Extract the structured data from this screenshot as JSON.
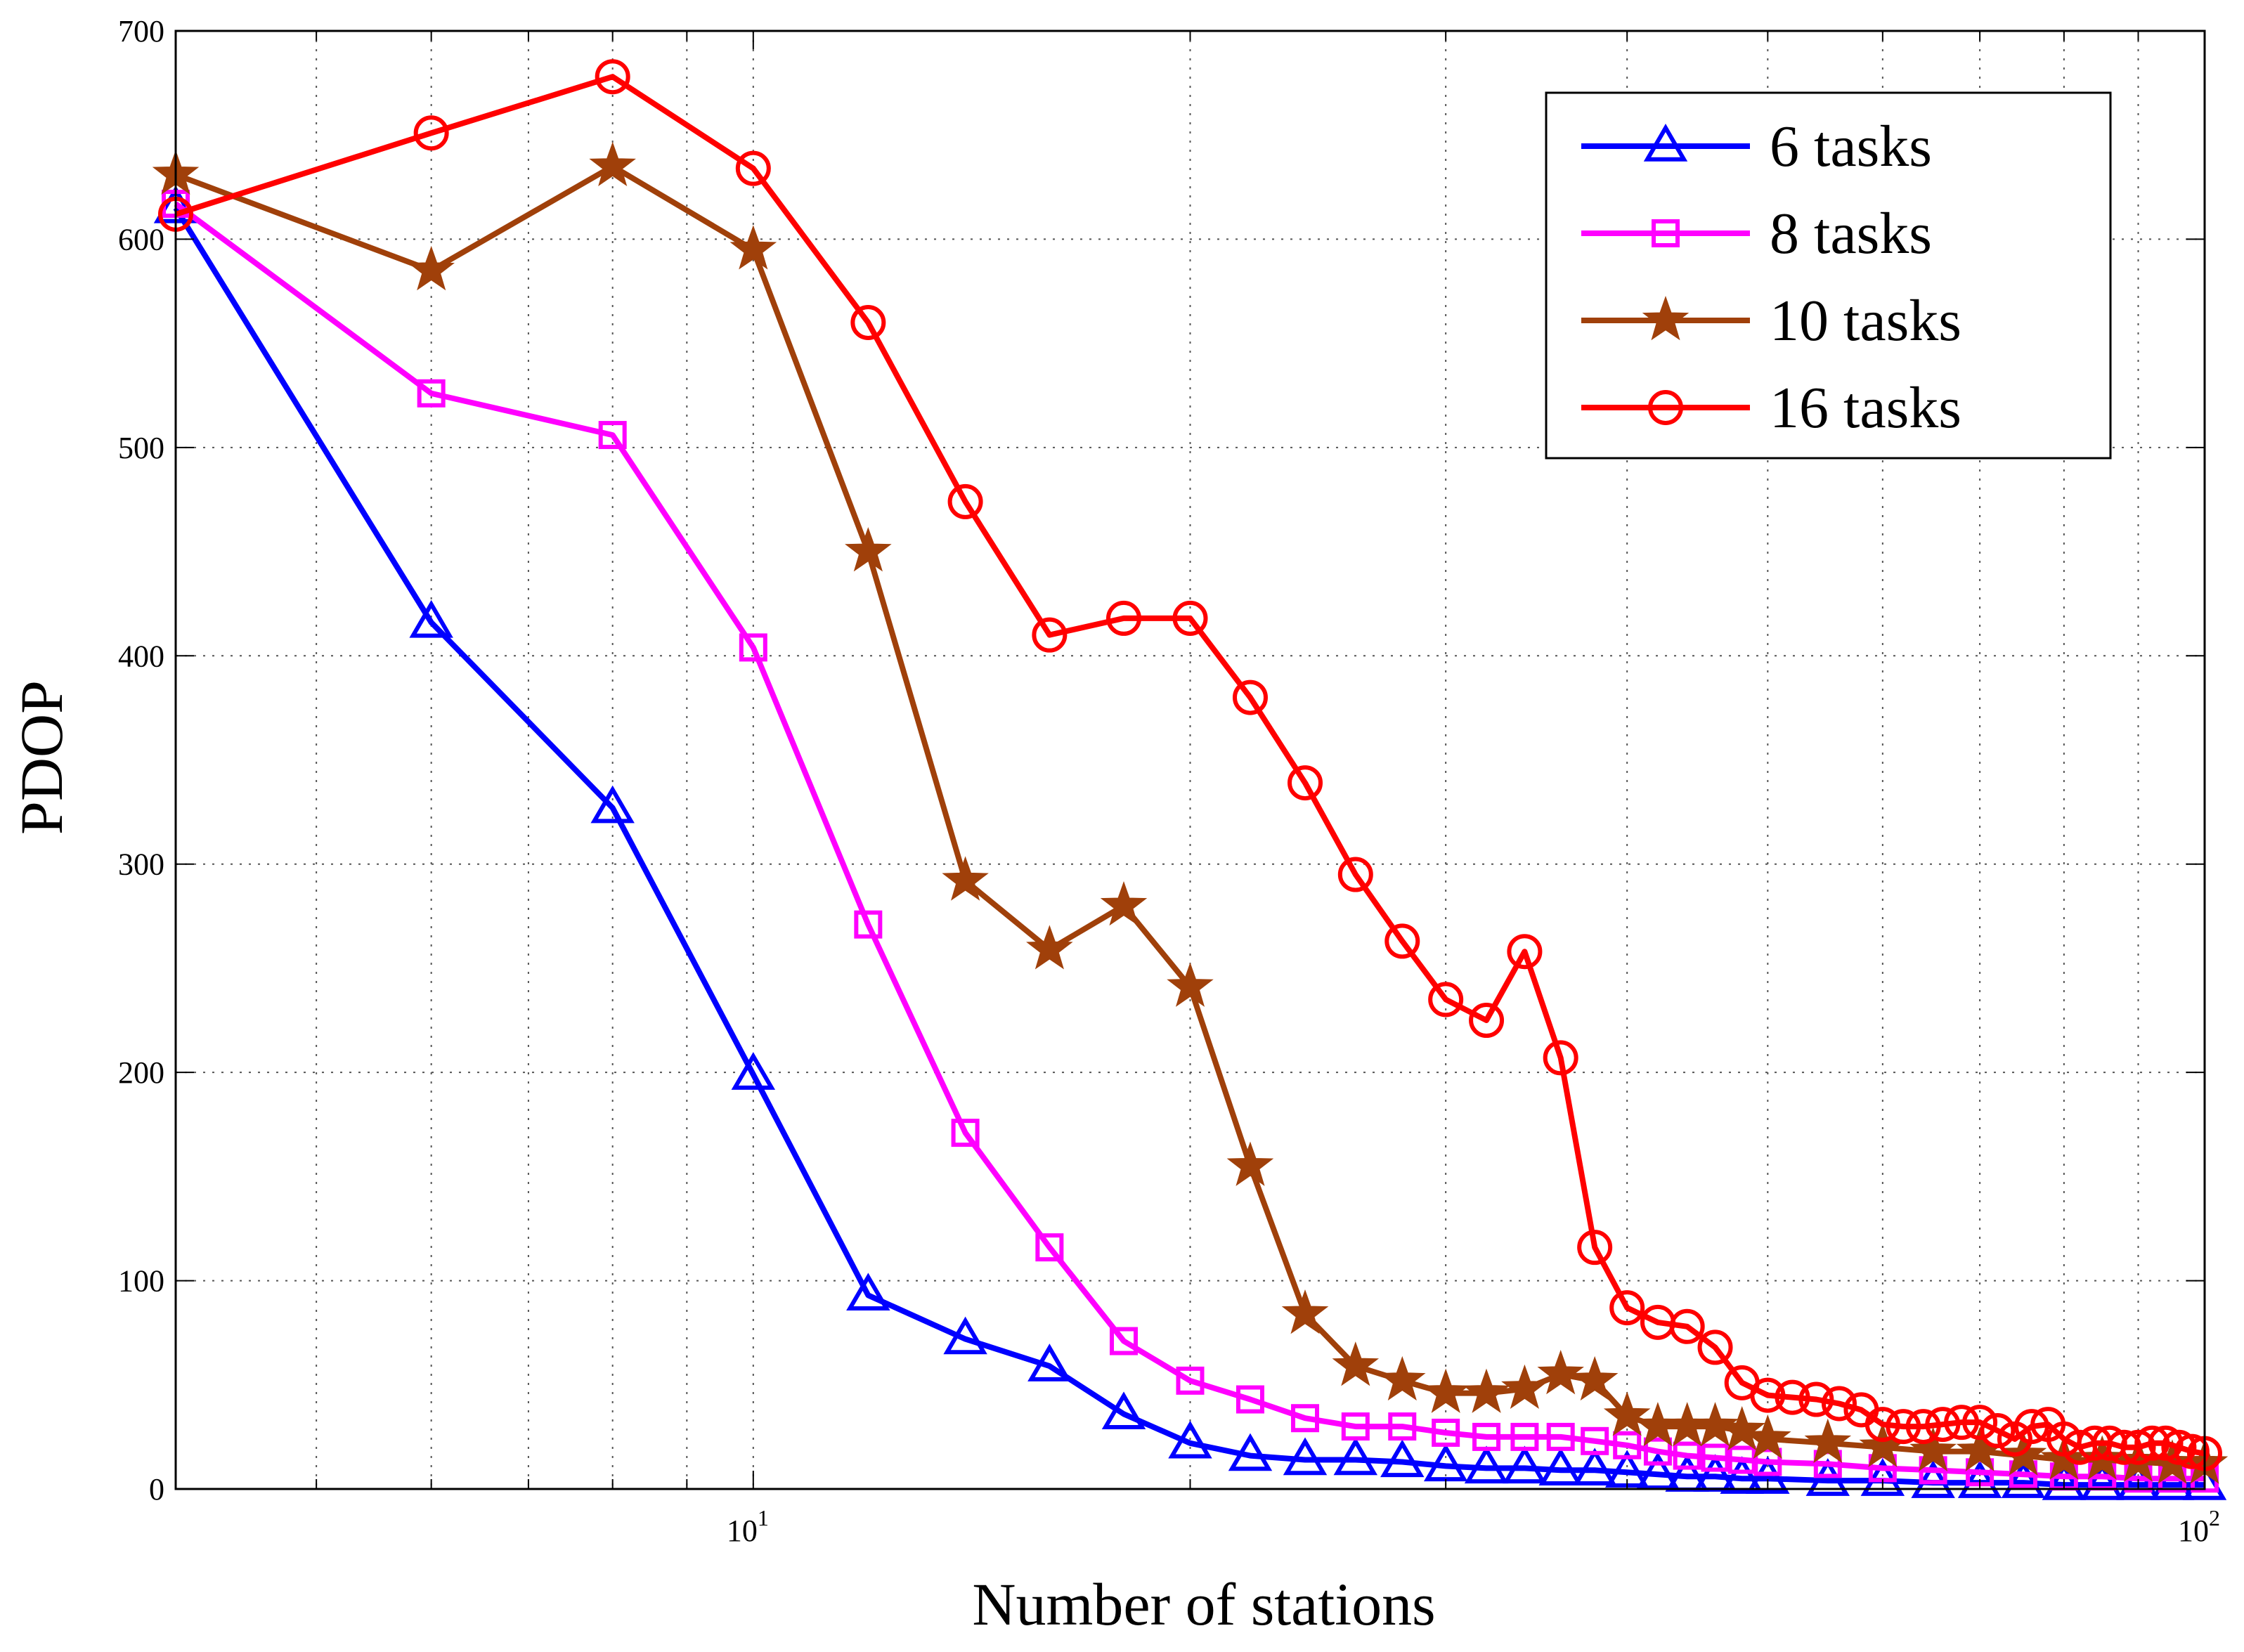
{
  "chart_data": {
    "type": "line",
    "title": "",
    "xlabel": "Number of stations",
    "ylabel": "PDOP",
    "xscale": "log",
    "xlim": [
      4,
      100
    ],
    "ylim": [
      0,
      700
    ],
    "grid": true,
    "legend_position": "top-right",
    "x_ticks": [
      {
        "value": 10,
        "base": "10",
        "exp": "1"
      },
      {
        "value": 100,
        "base": "10",
        "exp": "2"
      }
    ],
    "y_ticks": [
      "0",
      "100",
      "200",
      "300",
      "400",
      "500",
      "600",
      "700"
    ],
    "series": [
      {
        "name": "6 tasks",
        "color": "#0000ff",
        "marker": "triangle",
        "x": [
          4,
          6,
          8,
          10,
          12,
          14,
          16,
          18,
          20,
          22,
          24,
          26,
          28,
          30,
          32,
          34,
          36,
          38,
          40,
          42,
          44,
          46,
          48,
          50,
          55,
          60,
          65,
          70,
          75,
          80,
          85,
          90,
          95,
          100
        ],
        "y": [
          615,
          416,
          327,
          199,
          93,
          72,
          59,
          36,
          22,
          16,
          14,
          14,
          13,
          11,
          10,
          10,
          9,
          9,
          8,
          7,
          6,
          6,
          5,
          5,
          4,
          4,
          3,
          3,
          3,
          2,
          2,
          2,
          2,
          2
        ]
      },
      {
        "name": "8 tasks",
        "color": "#ff00ff",
        "marker": "square",
        "x": [
          4,
          6,
          8,
          10,
          12,
          14,
          16,
          18,
          20,
          22,
          24,
          26,
          28,
          30,
          32,
          34,
          36,
          38,
          40,
          42,
          44,
          46,
          48,
          50,
          55,
          60,
          65,
          70,
          75,
          80,
          85,
          90,
          95,
          100
        ],
        "y": [
          617,
          526,
          506,
          404,
          271,
          171,
          116,
          71,
          52,
          43,
          34,
          30,
          30,
          27,
          25,
          25,
          25,
          23,
          21,
          18,
          16,
          15,
          14,
          13,
          12,
          10,
          9,
          8,
          7,
          6,
          6,
          5,
          5,
          5
        ]
      },
      {
        "name": "10 tasks",
        "color": "#a0400a",
        "marker": "star",
        "x": [
          4,
          6,
          8,
          10,
          12,
          14,
          16,
          18,
          20,
          22,
          24,
          26,
          28,
          30,
          32,
          34,
          36,
          38,
          40,
          42,
          44,
          46,
          48,
          50,
          55,
          60,
          65,
          70,
          75,
          80,
          85,
          90,
          95,
          100
        ],
        "y": [
          631,
          585,
          635,
          595,
          450,
          292,
          259,
          280,
          241,
          155,
          84,
          59,
          52,
          46,
          46,
          48,
          55,
          52,
          35,
          30,
          30,
          30,
          28,
          24,
          22,
          20,
          18,
          18,
          16,
          14,
          14,
          13,
          12,
          12
        ]
      },
      {
        "name": "16 tasks",
        "color": "#ff0000",
        "marker": "circle",
        "x": [
          4,
          6,
          8,
          10,
          12,
          14,
          16,
          18,
          20,
          22,
          24,
          26,
          28,
          30,
          32,
          34,
          36,
          38,
          40,
          42,
          44,
          46,
          48,
          50,
          52,
          54,
          56,
          58,
          60,
          62,
          64,
          66,
          68,
          70,
          72,
          74,
          76,
          78,
          80,
          82,
          84,
          86,
          88,
          90,
          92,
          94,
          96,
          98,
          100
        ],
        "y": [
          612,
          651,
          678,
          634,
          560,
          474,
          410,
          418,
          418,
          380,
          339,
          295,
          263,
          235,
          225,
          258,
          207,
          116,
          87,
          80,
          78,
          68,
          51,
          45,
          44,
          43,
          41,
          38,
          31,
          30,
          30,
          31,
          32,
          32,
          28,
          24,
          30,
          31,
          24,
          20,
          22,
          22,
          20,
          20,
          22,
          22,
          20,
          18,
          17
        ]
      }
    ]
  }
}
